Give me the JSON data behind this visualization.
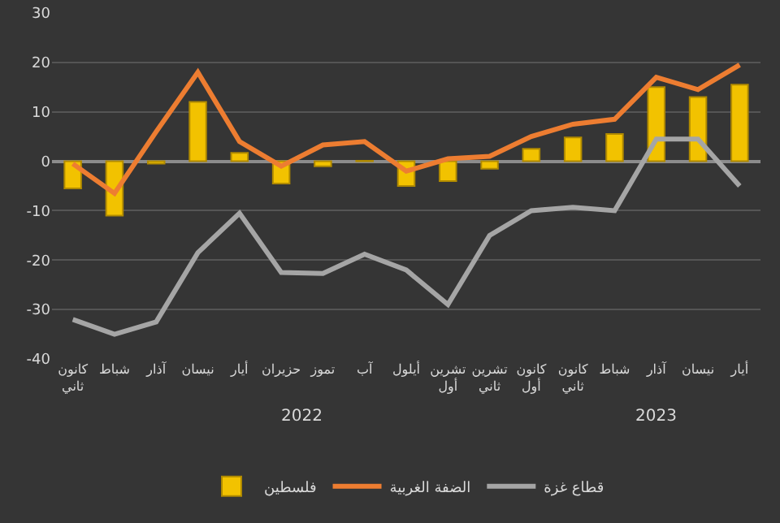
{
  "chart_data": {
    "type": "bar",
    "categories": [
      "كانون ثاني",
      "شباط",
      "آذار",
      "نيسان",
      "أيار",
      "حزيران",
      "تموز",
      "آب",
      "أيلول",
      "تشرين أول",
      "تشرين ثاني",
      "كانون أول",
      "كانون ثاني",
      "شباط",
      "آذار",
      "نيسان",
      "أيار"
    ],
    "series": [
      {
        "name": "فلسطين",
        "color": "#f2c200",
        "values": [
          -5.5,
          -11,
          -0.5,
          12,
          1.7,
          -4.5,
          -1,
          0.1,
          -5,
          -4,
          -1.5,
          2.5,
          4.8,
          5.5,
          15,
          13,
          15.5
        ]
      },
      {
        "name": "الضفة الغربية",
        "type": "line",
        "color": "#ed7d31",
        "values": [
          -0.5,
          -6.5,
          6,
          18,
          4,
          -1,
          3.3,
          4,
          -2,
          0.5,
          1,
          5,
          7.5,
          8.5,
          17,
          14.5,
          19.5
        ]
      },
      {
        "name": "قطاع غزة",
        "type": "line",
        "color": "#a5a5a5",
        "values": [
          -32,
          -35,
          -32.5,
          -18.5,
          -10.5,
          -22.5,
          -22.7,
          -18.8,
          -22,
          -29,
          -15,
          -10,
          -9.3,
          -10,
          4.5,
          4.5,
          -5
        ]
      }
    ],
    "annotations": [
      "2022",
      "2023"
    ],
    "ylim": [
      -40,
      30
    ],
    "yticks": [
      -40,
      -30,
      -20,
      -10,
      0,
      10,
      20,
      30
    ],
    "grid": "y",
    "legend": "bottom",
    "marker": "none",
    "line_style": "solid"
  }
}
